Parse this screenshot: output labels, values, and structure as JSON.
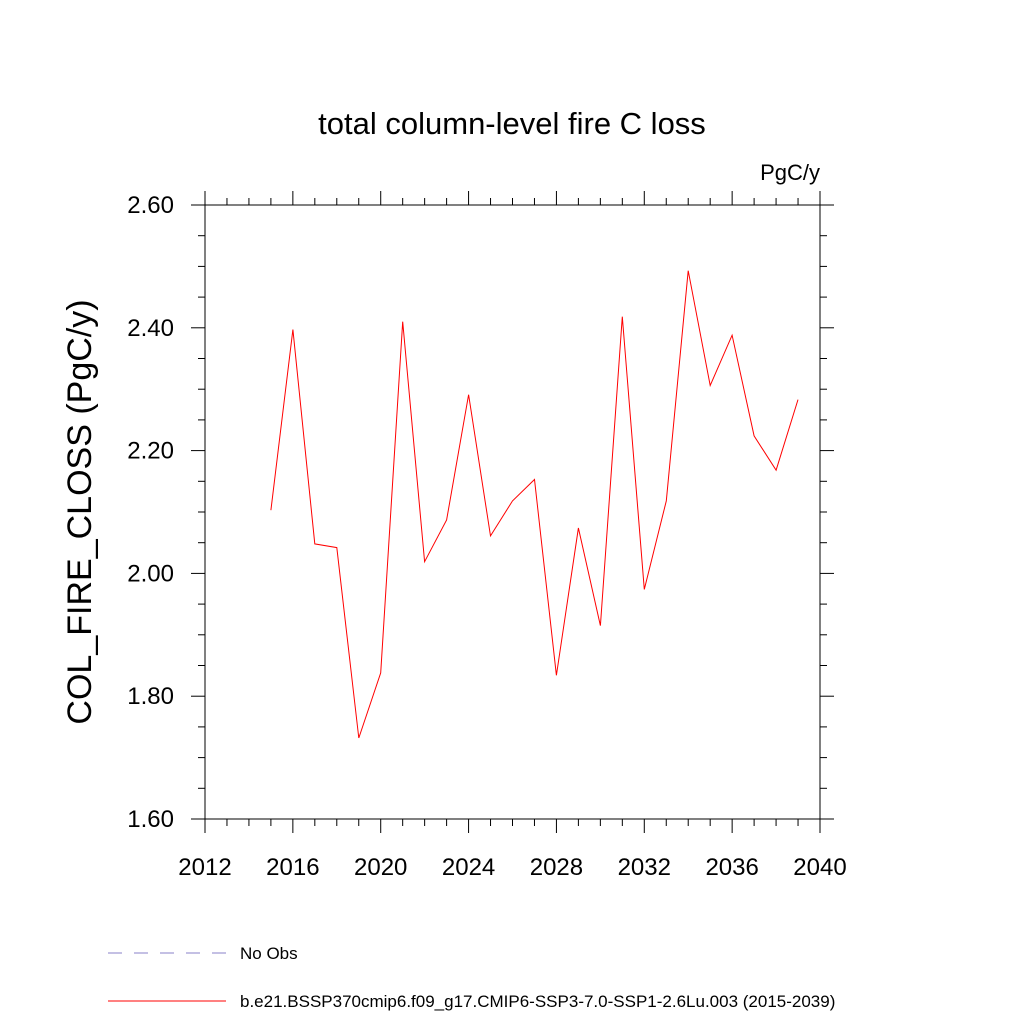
{
  "chart_data": {
    "type": "line",
    "title": "total column-level fire C loss",
    "units_label": "PgC/y",
    "xlabel": "",
    "ylabel": "COL_FIRE_CLOSS  (PgC/y)",
    "xlim": [
      2012,
      2040
    ],
    "ylim": [
      1.6,
      2.6
    ],
    "x_ticks": [
      2012,
      2016,
      2020,
      2024,
      2028,
      2032,
      2036,
      2040
    ],
    "x_tick_labels": [
      "2012",
      "2016",
      "2020",
      "2024",
      "2028",
      "2032",
      "2036",
      "2040"
    ],
    "y_ticks": [
      1.6,
      1.8,
      2.0,
      2.2,
      2.4,
      2.6
    ],
    "y_tick_labels": [
      "1.60",
      "1.80",
      "2.00",
      "2.20",
      "2.40",
      "2.60"
    ],
    "grid": false,
    "legend_position": "bottom",
    "legend": [
      {
        "label": "No Obs",
        "style": "dashed",
        "color": "#8a80c8"
      },
      {
        "label": "b.e21.BSSP370cmip6.f09_g17.CMIP6-SSP3-7.0-SSP1-2.6Lu.003 (2015-2039)",
        "style": "solid",
        "color": "#ff0000"
      }
    ],
    "series": [
      {
        "name": "b.e21.BSSP370cmip6.f09_g17.CMIP6-SSP3-7.0-SSP1-2.6Lu.003 (2015-2039)",
        "color": "#ff0000",
        "x": [
          2015,
          2016,
          2017,
          2018,
          2019,
          2020,
          2021,
          2022,
          2023,
          2024,
          2025,
          2026,
          2027,
          2028,
          2029,
          2030,
          2031,
          2032,
          2033,
          2034,
          2035,
          2036,
          2037,
          2038,
          2039
        ],
        "values": [
          2.103,
          2.397,
          2.048,
          2.042,
          1.732,
          1.838,
          2.41,
          2.019,
          2.087,
          2.291,
          2.061,
          2.118,
          2.153,
          1.834,
          2.074,
          1.915,
          2.418,
          1.974,
          2.118,
          2.493,
          2.306,
          2.388,
          2.224,
          2.168,
          2.283
        ]
      }
    ]
  }
}
